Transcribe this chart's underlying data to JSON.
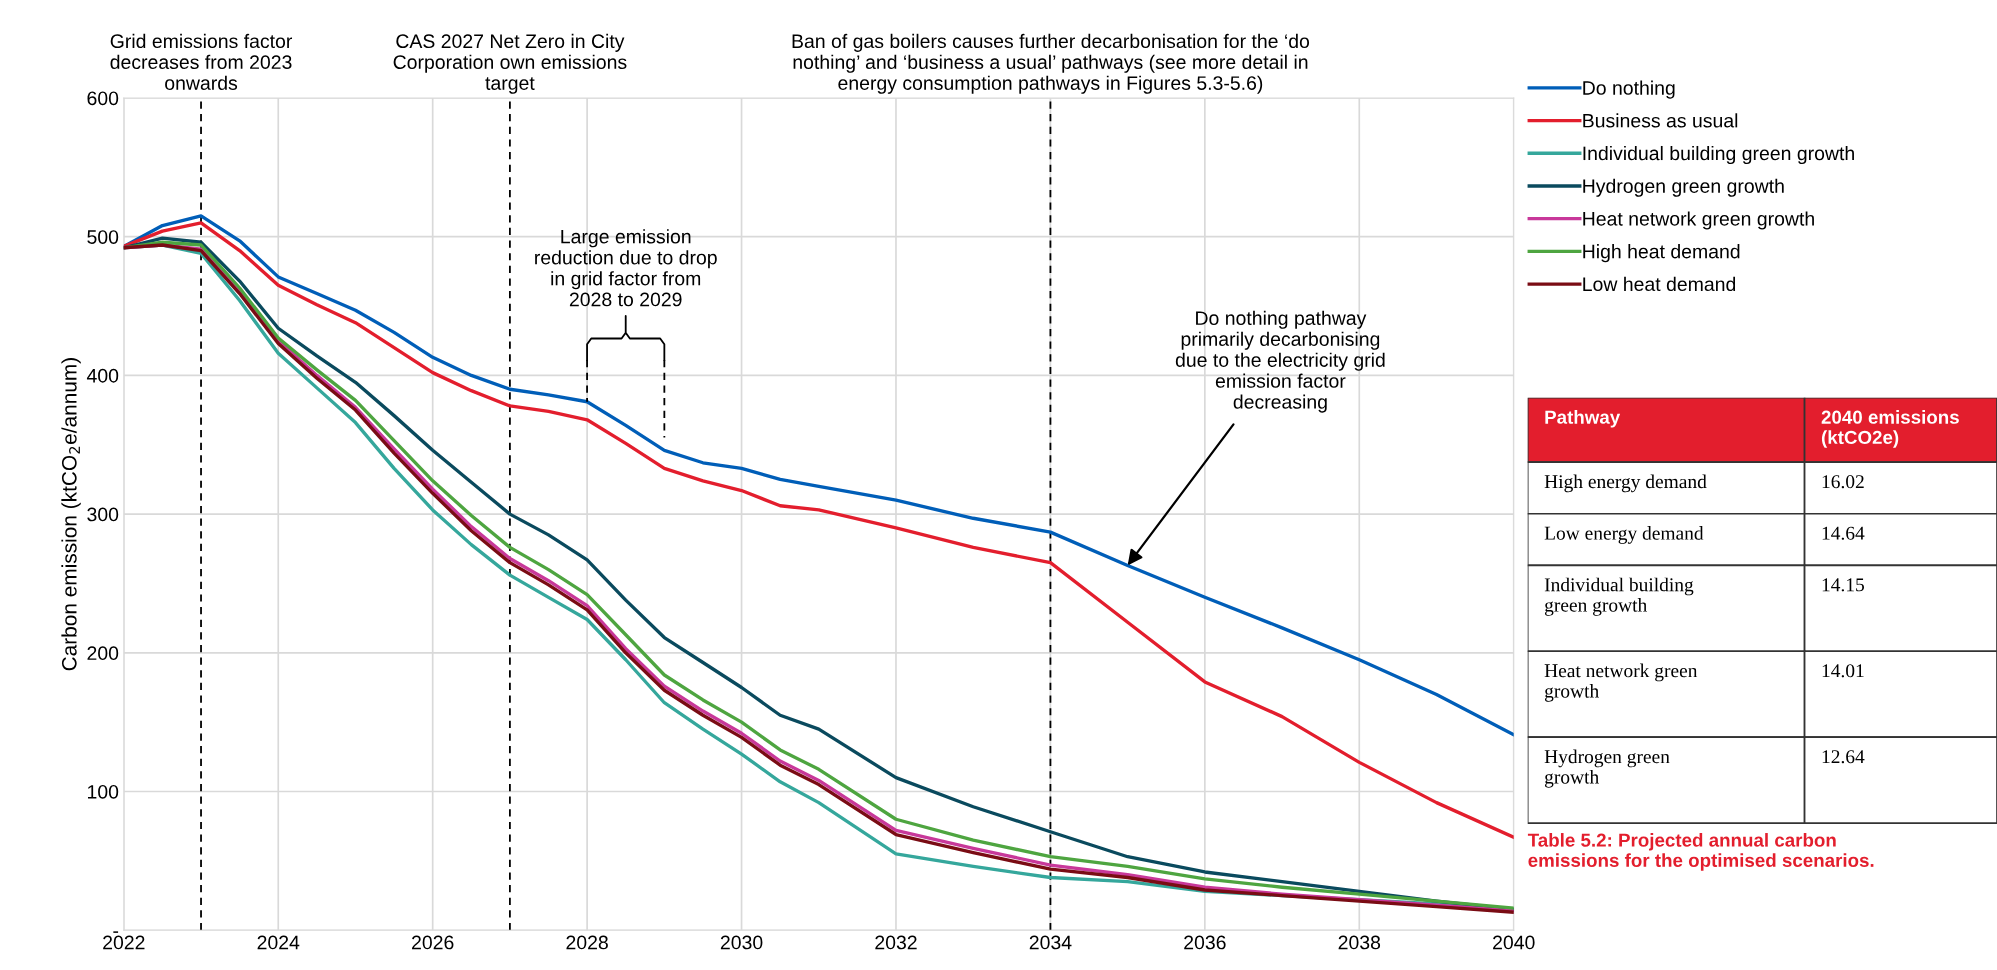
{
  "chart_data": [
    {
      "type": "line",
      "ylabel": "Carbon emission (ktCO$_{2}$e/annum)",
      "x": [
        2022,
        2022.5,
        2023,
        2023.5,
        2024,
        2024.5,
        2025,
        2025.5,
        2026,
        2026.5,
        2027,
        2027.5,
        2028,
        2028.5,
        2029,
        2029.5,
        2030,
        2030.5,
        2031,
        2032,
        2033,
        2034,
        2035,
        2036,
        2037,
        2038,
        2039,
        2040
      ],
      "series": [
        {
          "name": "Do nothing",
          "color": "#005eb8",
          "values": [
            493,
            508,
            515,
            497,
            471,
            459,
            447,
            431,
            413,
            400,
            390,
            386,
            381,
            364,
            346,
            337,
            333,
            325,
            320,
            310,
            297,
            287,
            263,
            240,
            218,
            195,
            170,
            141
          ]
        },
        {
          "name": "Business as usual",
          "color": "#e31e2d",
          "values": [
            493,
            504,
            510,
            490,
            465,
            451,
            438,
            420,
            402,
            389,
            378,
            374,
            368,
            351,
            333,
            324,
            317,
            306,
            303,
            290,
            276,
            265,
            222,
            179,
            154,
            121,
            92,
            67
          ]
        },
        {
          "name": "Individual building green growth",
          "color": "#35a79c",
          "values": [
            492,
            494,
            488,
            454,
            416,
            391,
            366,
            333,
            303,
            278,
            256,
            240,
            224,
            195,
            164,
            145,
            127,
            107,
            92,
            55,
            46,
            38,
            35,
            28,
            25,
            22,
            19,
            15
          ]
        },
        {
          "name": "Hydrogen green growth",
          "color": "#0a4a5e",
          "values": [
            492,
            499,
            496,
            468,
            434,
            414,
            395,
            371,
            346,
            323,
            300,
            285,
            267,
            238,
            211,
            193,
            175,
            155,
            145,
            110,
            89,
            71,
            53,
            42,
            35,
            28,
            21,
            15
          ]
        },
        {
          "name": "Heat network green growth",
          "color": "#c8389a",
          "values": [
            492,
            494,
            491,
            460,
            425,
            400,
            377,
            347,
            318,
            291,
            268,
            252,
            234,
            203,
            176,
            158,
            142,
            122,
            108,
            72,
            59,
            47,
            40,
            31,
            26,
            22,
            18,
            14
          ]
        },
        {
          "name": "High heat demand",
          "color": "#4ea540",
          "values": [
            492,
            496,
            494,
            463,
            427,
            404,
            382,
            353,
            324,
            299,
            276,
            260,
            242,
            213,
            184,
            166,
            150,
            130,
            116,
            80,
            65,
            53,
            46,
            37,
            31,
            26,
            21,
            16
          ]
        },
        {
          "name": "Low heat demand",
          "color": "#7a0c14",
          "values": [
            492,
            494,
            490,
            459,
            423,
            398,
            375,
            344,
            315,
            288,
            265,
            249,
            231,
            200,
            173,
            155,
            139,
            119,
            105,
            69,
            56,
            44,
            38,
            29,
            25,
            21,
            17,
            13
          ]
        }
      ],
      "xlim": [
        2022,
        2040
      ],
      "xticks": [
        2022,
        2024,
        2026,
        2028,
        2030,
        2032,
        2034,
        2036,
        2038,
        2040
      ],
      "ylim": [
        0,
        600
      ],
      "yticks": [
        {
          "value": 0,
          "label": "-"
        },
        100,
        200,
        300,
        400,
        500,
        600
      ],
      "grid": true,
      "legend": "right",
      "line_style": "solid",
      "marker": "none",
      "ref_lines": [
        {
          "axis": "x",
          "value": 2023,
          "label": "Grid emissions factor\ndecreases from 2023\nonwards",
          "color": "#000000",
          "line_style": "dashed"
        },
        {
          "axis": "x",
          "value": 2027,
          "label": "CAS 2027 Net Zero in City\nCorporation own emissions\ntarget",
          "color": "#000000",
          "line_style": "dashed"
        },
        {
          "axis": "x",
          "value": 2034,
          "label": "Ban of gas boilers causes further decarbonisation for the ‘do\nnothing’ and ‘business a usual’ pathways (see more detail in\nenergy consumption pathways in Figures 5.3-5.6)",
          "color": "#000000",
          "line_style": "dashed"
        }
      ],
      "annotations": [
        "Large emission\nreduction due to drop\nin grid factor from\n2028 to 2029",
        {
          "text": "Do nothing pathway\nprimarily decarbonising\ndue to the electricity grid\nemission factor\ndecreasing",
          "x": 2035,
          "y": 263
        }
      ]
    },
    {
      "type": "other",
      "xlabel": "Pathway",
      "ylabel": "2040 emissions\n(ktCO2e)",
      "categories": [
        "High energy demand",
        "Low energy demand",
        "Individual building\ngreen growth",
        "Heat network green\ngrowth",
        "Hydrogen green\ngrowth"
      ],
      "values": [
        16.02,
        14.64,
        14.15,
        14.01,
        12.64
      ],
      "data_labels": true,
      "annotations": [
        "Table 5.2: Projected annual carbon\nemissions for the optimised scenarios."
      ]
    }
  ]
}
